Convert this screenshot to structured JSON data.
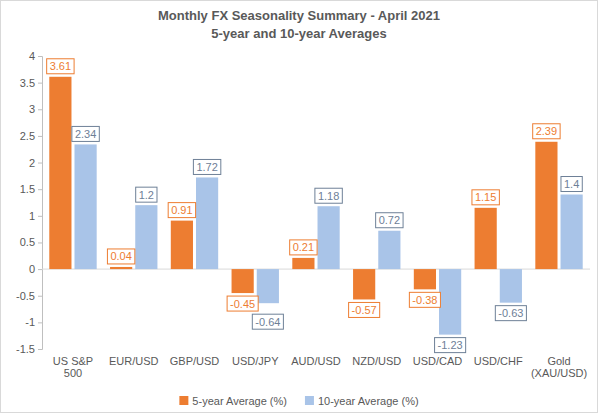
{
  "chart_data": {
    "type": "bar",
    "title": "Monthly FX Seasonality Summary - April 2021",
    "subtitle": "5-year and 10-year Averages",
    "categories": [
      "US S&P 500",
      "EUR/USD",
      "GBP/USD",
      "USD/JPY",
      "AUD/USD",
      "NZD/USD",
      "USD/CAD",
      "USD/CHF",
      "Gold (XAU/USD)"
    ],
    "series": [
      {
        "name": "5-year Average (%)",
        "color": "#ed7d31",
        "values": [
          3.61,
          0.04,
          0.91,
          -0.45,
          0.21,
          -0.57,
          -0.38,
          1.15,
          2.39
        ]
      },
      {
        "name": "10-year Average (%)",
        "color": "#a9c4e8",
        "values": [
          2.34,
          1.2,
          1.72,
          -0.64,
          1.18,
          0.72,
          -1.23,
          -0.63,
          1.4
        ]
      }
    ],
    "ylim": [
      -1.5,
      4
    ],
    "yticks": [
      -1.5,
      -1,
      -0.5,
      0,
      0.5,
      1,
      1.5,
      2,
      2.5,
      3,
      3.5,
      4
    ],
    "grid": false,
    "legend": "bottom",
    "data_labels": true
  }
}
